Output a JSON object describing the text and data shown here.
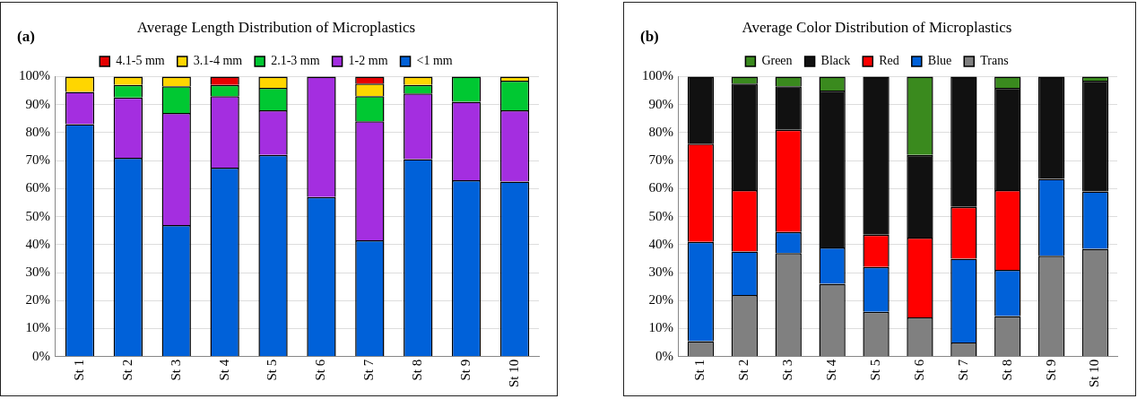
{
  "chart_data": [
    {
      "type": "bar",
      "title": "Average Length Distribution of Microplastics",
      "annotations": [
        "(a)"
      ],
      "stacked": true,
      "legend": "top",
      "grid": "y",
      "categories": [
        "St 1",
        "St 2",
        "St 3",
        "St 4",
        "St 5",
        "St 6",
        "St 7",
        "St 8",
        "St 9",
        "St 10"
      ],
      "ylim": [
        0,
        100
      ],
      "yticks": [
        {
          "value": 0,
          "label": "0%"
        },
        {
          "value": 10,
          "label": "10%"
        },
        {
          "value": 20,
          "label": "20%"
        },
        {
          "value": 30,
          "label": "30%"
        },
        {
          "value": 40,
          "label": "40%"
        },
        {
          "value": 50,
          "label": "50%"
        },
        {
          "value": 60,
          "label": "60%"
        },
        {
          "value": 70,
          "label": "70%"
        },
        {
          "value": 80,
          "label": "80%"
        },
        {
          "value": 90,
          "label": "90%"
        },
        {
          "value": 100,
          "label": "100%"
        }
      ],
      "series": [
        {
          "name": "<1 mm",
          "color": "#0061d9",
          "values": [
            83,
            71,
            47,
            67.5,
            72,
            57,
            41.5,
            70.5,
            63,
            62.5
          ]
        },
        {
          "name": "1-2 mm",
          "color": "#a42ee0",
          "values": [
            11.5,
            21.5,
            40,
            25.5,
            16,
            43,
            42.5,
            23.5,
            28,
            25.5
          ]
        },
        {
          "name": "2.1-3 mm",
          "color": "#00c832",
          "values": [
            0,
            4.5,
            9.5,
            4,
            8,
            0,
            9,
            3,
            9,
            10.5
          ]
        },
        {
          "name": "3.1-4 mm",
          "color": "#ffd600",
          "values": [
            5.5,
            3,
            3.5,
            0,
            4,
            0,
            4.5,
            3,
            0,
            1.5
          ]
        },
        {
          "name": "4.1-5 mm",
          "color": "#e60000",
          "values": [
            0,
            0,
            0,
            3,
            0,
            0,
            2.5,
            0,
            0,
            0
          ]
        }
      ]
    },
    {
      "type": "bar",
      "title": "Average Color Distribution of Microplastics",
      "annotations": [
        "(b)"
      ],
      "stacked": true,
      "legend": "top",
      "grid": "y",
      "categories": [
        "St 1",
        "St 2",
        "St 3",
        "St 4",
        "St 5",
        "St 6",
        "St 7",
        "St 8",
        "St 9",
        "St 10"
      ],
      "ylim": [
        0,
        100
      ],
      "yticks": [
        {
          "value": 0,
          "label": "0%"
        },
        {
          "value": 10,
          "label": "10%"
        },
        {
          "value": 20,
          "label": "20%"
        },
        {
          "value": 30,
          "label": "30%"
        },
        {
          "value": 40,
          "label": "40%"
        },
        {
          "value": 50,
          "label": "50%"
        },
        {
          "value": 60,
          "label": "60%"
        },
        {
          "value": 70,
          "label": "70%"
        },
        {
          "value": 80,
          "label": "80%"
        },
        {
          "value": 90,
          "label": "90%"
        },
        {
          "value": 100,
          "label": "100%"
        }
      ],
      "series": [
        {
          "name": "Trans",
          "color": "#808080",
          "values": [
            5.5,
            22,
            37,
            26,
            16,
            14,
            5,
            14.5,
            36,
            38.5
          ]
        },
        {
          "name": "Blue",
          "color": "#0061d9",
          "values": [
            35.5,
            15.5,
            7.5,
            13,
            16,
            0,
            30,
            16.5,
            27.5,
            20.5
          ]
        },
        {
          "name": "Red",
          "color": "#ff0000",
          "values": [
            35,
            22,
            36.5,
            0,
            11.5,
            28.5,
            18.5,
            28.5,
            0,
            0
          ]
        },
        {
          "name": "Black",
          "color": "#111111",
          "values": [
            24,
            38,
            15.5,
            56,
            56.5,
            29.5,
            46.5,
            36.5,
            36.5,
            39.5
          ]
        },
        {
          "name": "Green",
          "color": "#3a8a1e",
          "values": [
            0,
            2.5,
            3.5,
            5,
            0,
            28,
            0,
            4,
            0,
            1.5
          ]
        }
      ]
    }
  ]
}
